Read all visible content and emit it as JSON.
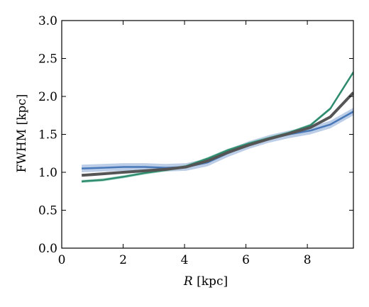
{
  "chart_data": {
    "type": "line",
    "title": "",
    "xlabel_italic": "R",
    "xlabel_rest": " [kpc]",
    "ylabel": "FWHM [kpc]",
    "xlim": [
      0,
      9.5
    ],
    "ylim": [
      0.0,
      3.0
    ],
    "xticks": [
      0,
      2,
      4,
      6,
      8
    ],
    "xtick_labels": [
      "0",
      "2",
      "4",
      "6",
      "8"
    ],
    "yticks": [
      0.0,
      0.5,
      1.0,
      1.5,
      2.0,
      2.5,
      3.0
    ],
    "ytick_labels": [
      "0.0",
      "0.5",
      "1.0",
      "1.5",
      "2.0",
      "2.5",
      "3.0"
    ],
    "grid": false,
    "x": [
      0.65,
      1.35,
      2.0,
      2.7,
      3.4,
      4.05,
      4.75,
      5.4,
      6.1,
      6.75,
      7.4,
      8.1,
      8.75,
      9.5
    ],
    "series": [
      {
        "color": "#4878b8",
        "band_color": "#6a93c9",
        "band_halfwidth": 0.05,
        "values": [
          1.05,
          1.06,
          1.07,
          1.07,
          1.06,
          1.07,
          1.13,
          1.25,
          1.36,
          1.44,
          1.5,
          1.55,
          1.63,
          1.8
        ]
      },
      {
        "color": "#2e8b6e",
        "band_color": "#5cb597",
        "band_halfwidth": 0.02,
        "values": [
          0.88,
          0.9,
          0.94,
          0.99,
          1.03,
          1.08,
          1.18,
          1.29,
          1.38,
          1.45,
          1.52,
          1.62,
          1.84,
          2.32
        ]
      },
      {
        "color": "#555555",
        "band_color": "#555555",
        "band_halfwidth": 0.0,
        "values": [
          0.96,
          0.98,
          1.0,
          1.02,
          1.04,
          1.07,
          1.15,
          1.26,
          1.36,
          1.44,
          1.51,
          1.59,
          1.73,
          2.05
        ]
      }
    ]
  }
}
